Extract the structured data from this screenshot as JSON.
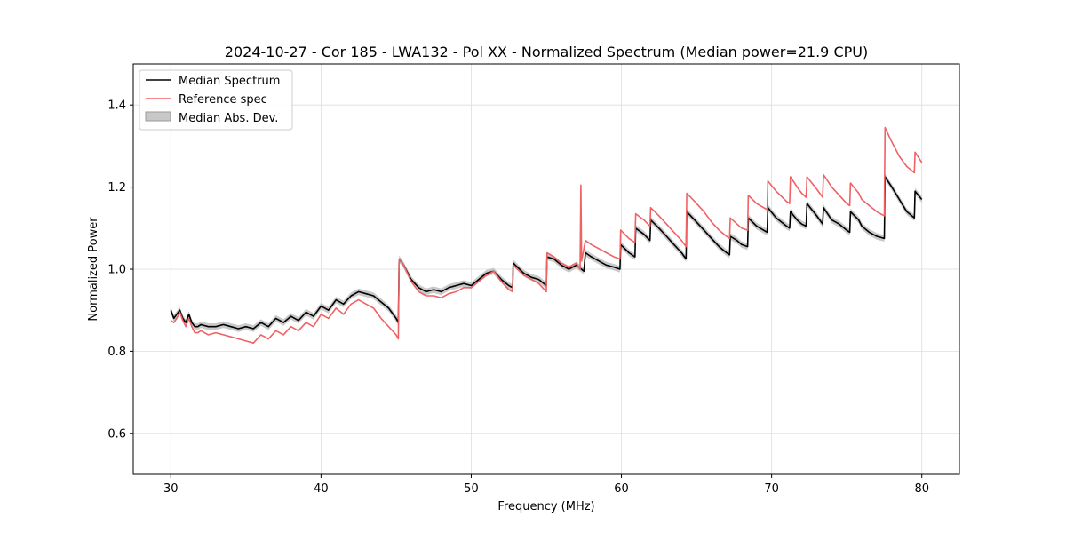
{
  "chart_data": {
    "type": "line",
    "title": "2024-10-27 - Cor 185 - LWA132 - Pol XX - Normalized Spectrum (Median power=21.9 CPU)",
    "xlabel": "Frequency (MHz)",
    "ylabel": "Normalized Power",
    "xlim": [
      27.5,
      82.5
    ],
    "ylim": [
      0.5,
      1.5
    ],
    "xticks": [
      30,
      40,
      50,
      60,
      70,
      80
    ],
    "yticks": [
      0.6,
      0.8,
      1.0,
      1.2,
      1.4
    ],
    "xtick_labels": [
      "30",
      "40",
      "50",
      "60",
      "70",
      "80"
    ],
    "ytick_labels": [
      "0.6",
      "0.8",
      "1.0",
      "1.2",
      "1.4"
    ],
    "grid": true,
    "legend": {
      "position": "top-left",
      "entries": [
        "Median Spectrum",
        "Reference spec",
        "Median Abs. Dev."
      ]
    },
    "colors": {
      "median": "#000000",
      "reference": "#ef6264",
      "mad_fill": "#bfbfbf",
      "grid": "#dddddd"
    },
    "mad_halfwidth": 0.008,
    "series": [
      {
        "name": "Median Spectrum",
        "x": [
          30.0,
          30.2,
          30.4,
          30.6,
          30.8,
          31.0,
          31.2,
          31.4,
          31.6,
          31.8,
          32.0,
          32.5,
          33.0,
          33.5,
          34.0,
          34.5,
          35.0,
          35.5,
          36.0,
          36.5,
          37.0,
          37.5,
          38.0,
          38.5,
          39.0,
          39.5,
          40.0,
          40.5,
          41.0,
          41.5,
          42.0,
          42.5,
          43.0,
          43.5,
          44.0,
          44.5,
          45.0,
          45.15,
          45.2,
          45.5,
          46.0,
          46.5,
          47.0,
          47.5,
          48.0,
          48.5,
          49.0,
          49.5,
          50.0,
          50.5,
          51.0,
          51.5,
          52.0,
          52.5,
          52.75,
          52.8,
          53.5,
          54.0,
          54.5,
          55.0,
          55.05,
          55.5,
          56.0,
          56.5,
          57.0,
          57.5,
          57.6,
          58.0,
          58.5,
          59.0,
          59.5,
          59.9,
          59.95,
          60.5,
          60.9,
          60.95,
          61.5,
          61.9,
          61.95,
          62.5,
          63.0,
          63.5,
          64.0,
          64.3,
          64.35,
          65.0,
          65.5,
          66.0,
          66.5,
          67.0,
          67.2,
          67.25,
          67.7,
          68.0,
          68.4,
          68.45,
          69.0,
          69.7,
          69.75,
          70.3,
          71.0,
          71.2,
          71.25,
          71.7,
          72.0,
          72.3,
          72.35,
          73.0,
          73.4,
          73.45,
          74.0,
          74.5,
          75.0,
          75.2,
          75.25,
          75.8,
          76.0,
          76.5,
          77.0,
          77.5,
          77.55,
          78.0,
          78.5,
          79.0,
          79.5,
          79.55,
          80.0
        ],
        "y": [
          0.9,
          0.88,
          0.89,
          0.9,
          0.88,
          0.87,
          0.89,
          0.87,
          0.86,
          0.86,
          0.865,
          0.86,
          0.86,
          0.865,
          0.86,
          0.855,
          0.86,
          0.855,
          0.87,
          0.86,
          0.88,
          0.87,
          0.885,
          0.875,
          0.895,
          0.885,
          0.91,
          0.9,
          0.925,
          0.915,
          0.935,
          0.945,
          0.94,
          0.935,
          0.92,
          0.905,
          0.88,
          0.87,
          1.025,
          1.01,
          0.975,
          0.955,
          0.945,
          0.95,
          0.945,
          0.955,
          0.96,
          0.965,
          0.96,
          0.975,
          0.99,
          0.995,
          0.975,
          0.96,
          0.955,
          1.015,
          0.99,
          0.98,
          0.975,
          0.96,
          1.03,
          1.025,
          1.01,
          1.0,
          1.01,
          0.995,
          1.04,
          1.03,
          1.02,
          1.01,
          1.005,
          1.0,
          1.06,
          1.04,
          1.03,
          1.1,
          1.085,
          1.07,
          1.12,
          1.1,
          1.08,
          1.06,
          1.04,
          1.025,
          1.14,
          1.115,
          1.095,
          1.075,
          1.055,
          1.04,
          1.035,
          1.08,
          1.07,
          1.06,
          1.055,
          1.125,
          1.105,
          1.09,
          1.15,
          1.125,
          1.105,
          1.1,
          1.14,
          1.12,
          1.11,
          1.105,
          1.16,
          1.13,
          1.11,
          1.15,
          1.12,
          1.11,
          1.095,
          1.09,
          1.14,
          1.12,
          1.105,
          1.09,
          1.08,
          1.075,
          1.225,
          1.2,
          1.17,
          1.14,
          1.125,
          1.19,
          1.17
        ]
      },
      {
        "name": "Reference spec",
        "x": [
          30.0,
          30.2,
          30.4,
          30.6,
          30.8,
          31.0,
          31.2,
          31.4,
          31.6,
          31.8,
          32.0,
          32.5,
          33.0,
          33.5,
          34.0,
          34.5,
          35.0,
          35.5,
          36.0,
          36.5,
          37.0,
          37.5,
          38.0,
          38.5,
          39.0,
          39.5,
          40.0,
          40.5,
          41.0,
          41.5,
          42.0,
          42.5,
          43.0,
          43.5,
          44.0,
          44.5,
          45.0,
          45.15,
          45.2,
          45.5,
          46.0,
          46.5,
          47.0,
          47.5,
          48.0,
          48.5,
          49.0,
          49.5,
          50.0,
          50.5,
          51.0,
          51.5,
          52.0,
          52.5,
          52.75,
          52.8,
          53.5,
          54.0,
          54.5,
          55.0,
          55.05,
          55.5,
          56.0,
          56.5,
          57.0,
          57.25,
          57.3,
          57.35,
          57.6,
          58.0,
          58.5,
          59.0,
          59.5,
          59.9,
          59.95,
          60.5,
          60.9,
          60.95,
          61.5,
          61.9,
          61.95,
          62.5,
          63.0,
          63.5,
          64.0,
          64.3,
          64.35,
          65.0,
          65.5,
          66.0,
          66.5,
          67.0,
          67.2,
          67.25,
          67.7,
          68.0,
          68.4,
          68.45,
          69.0,
          69.7,
          69.75,
          70.3,
          71.0,
          71.2,
          71.25,
          71.7,
          72.0,
          72.3,
          72.35,
          73.0,
          73.4,
          73.45,
          74.0,
          74.5,
          75.0,
          75.2,
          75.25,
          75.8,
          76.0,
          76.5,
          77.0,
          77.5,
          77.55,
          78.0,
          78.5,
          79.0,
          79.5,
          79.55,
          80.0
        ],
        "y": [
          0.875,
          0.87,
          0.88,
          0.895,
          0.875,
          0.86,
          0.88,
          0.86,
          0.845,
          0.845,
          0.85,
          0.84,
          0.845,
          0.84,
          0.835,
          0.83,
          0.825,
          0.82,
          0.84,
          0.83,
          0.85,
          0.84,
          0.86,
          0.85,
          0.87,
          0.86,
          0.89,
          0.88,
          0.905,
          0.89,
          0.915,
          0.925,
          0.915,
          0.905,
          0.88,
          0.86,
          0.84,
          0.83,
          1.025,
          1.01,
          0.97,
          0.945,
          0.935,
          0.935,
          0.93,
          0.94,
          0.945,
          0.955,
          0.955,
          0.97,
          0.985,
          0.995,
          0.97,
          0.95,
          0.945,
          1.01,
          0.985,
          0.975,
          0.965,
          0.945,
          1.04,
          1.03,
          1.015,
          1.005,
          1.015,
          1.0,
          1.205,
          1.02,
          1.07,
          1.06,
          1.05,
          1.04,
          1.03,
          1.025,
          1.095,
          1.075,
          1.065,
          1.135,
          1.12,
          1.105,
          1.15,
          1.13,
          1.11,
          1.09,
          1.07,
          1.055,
          1.185,
          1.16,
          1.14,
          1.115,
          1.095,
          1.08,
          1.075,
          1.125,
          1.11,
          1.1,
          1.095,
          1.18,
          1.16,
          1.145,
          1.215,
          1.19,
          1.165,
          1.16,
          1.225,
          1.2,
          1.185,
          1.175,
          1.225,
          1.195,
          1.175,
          1.23,
          1.2,
          1.18,
          1.16,
          1.155,
          1.21,
          1.185,
          1.17,
          1.155,
          1.14,
          1.13,
          1.345,
          1.31,
          1.275,
          1.25,
          1.235,
          1.285,
          1.26
        ]
      }
    ]
  }
}
